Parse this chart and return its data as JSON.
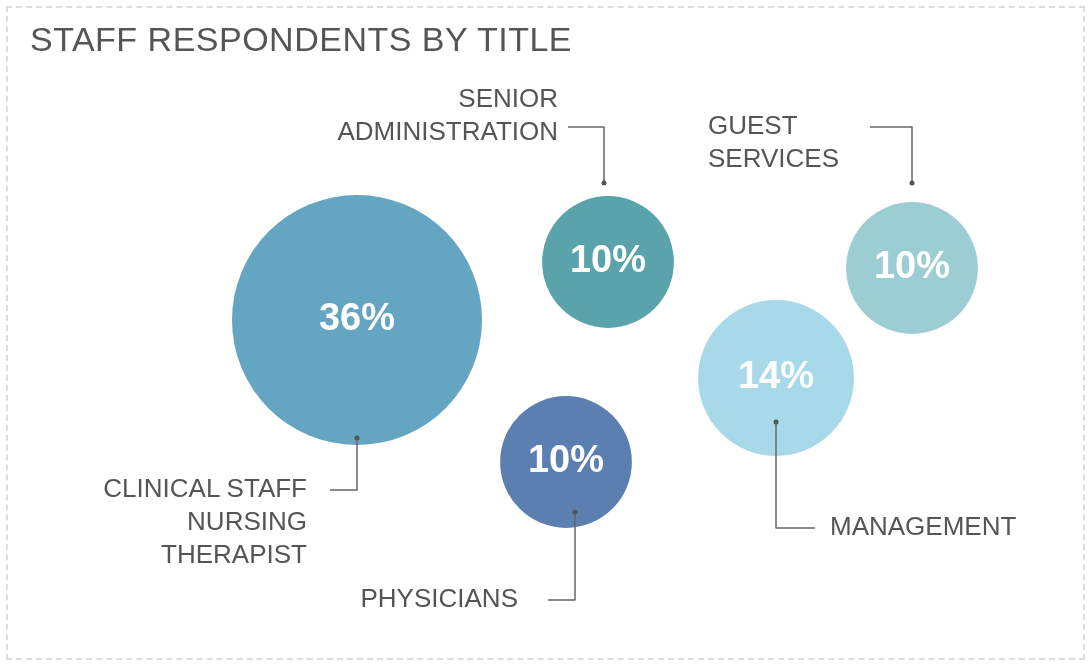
{
  "chart_data": {
    "type": "other",
    "title": "STAFF RESPONDENTS BY TITLE",
    "categories": [
      "CLINICAL STAFF\nNURSING\nTHERAPIST",
      "SENIOR\nADMINISTRATION",
      "GUEST\nSERVICES",
      "MANAGEMENT",
      "PHYSICIANS"
    ],
    "values": [
      36,
      10,
      10,
      14,
      10
    ],
    "value_labels": [
      "36%",
      "10%",
      "10%",
      "14%",
      "10%"
    ],
    "colors": [
      "#64a5c2",
      "#5ba3ab",
      "#9ccdd3",
      "#a8d9e8",
      "#5b7fb0"
    ]
  }
}
